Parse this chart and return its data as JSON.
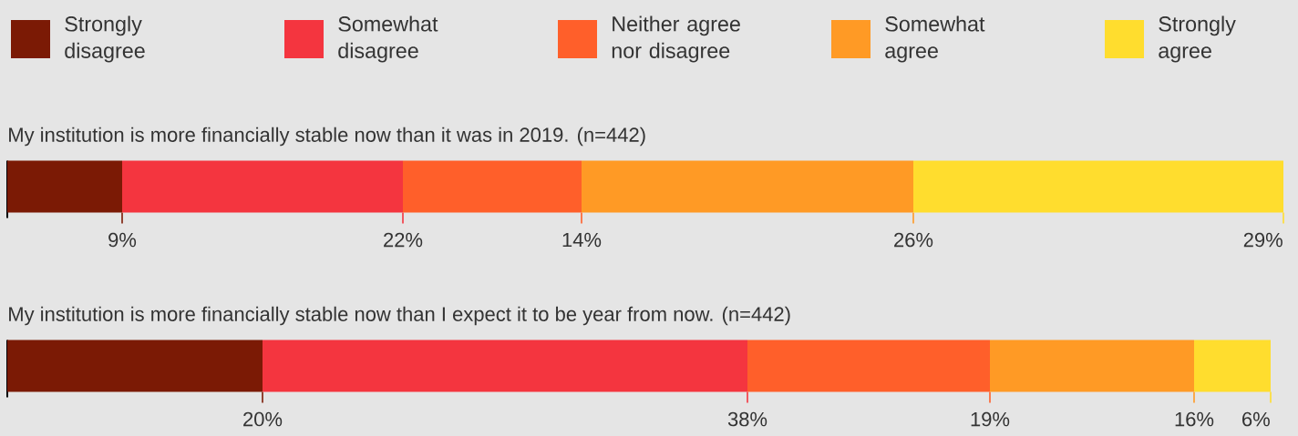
{
  "chart_data": {
    "type": "bar",
    "orientation": "horizontal",
    "stacked": true,
    "legend": "top",
    "categories": [
      "My institution is more financially stable now than it was in 2019. (n=442)",
      "My institution is more financially stable now than I expect it to be year from now. (n=442)"
    ],
    "series": [
      {
        "name": "Strongly disagree",
        "color": "#7b1a05",
        "values": [
          9,
          20
        ],
        "value_labels": [
          "9%",
          "20%"
        ]
      },
      {
        "name": "Somewhat disagree",
        "color": "#f4353f",
        "values": [
          22,
          38
        ],
        "value_labels": [
          "22%",
          "38%"
        ]
      },
      {
        "name": "Neither agree nor disagree",
        "color": "#ff5f2a",
        "values": [
          14,
          19
        ],
        "value_labels": [
          "14%",
          "19%"
        ]
      },
      {
        "name": "Somewhat agree",
        "color": "#ff9a25",
        "values": [
          26,
          16
        ],
        "value_labels": [
          "26%",
          "16%"
        ]
      },
      {
        "name": "Strongly agree",
        "color": "#ffdd2e",
        "values": [
          29,
          6
        ],
        "value_labels": [
          "29%",
          "6%"
        ]
      }
    ]
  }
}
